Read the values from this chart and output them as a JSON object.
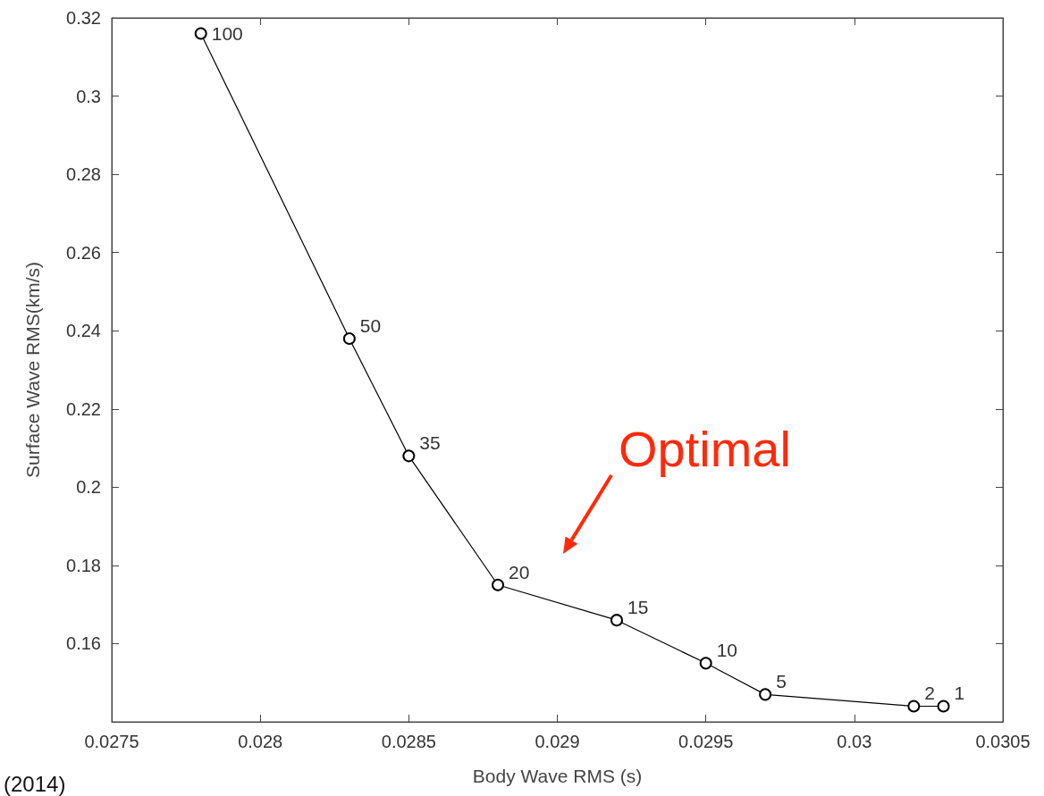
{
  "chart_data": {
    "type": "line",
    "xlabel": "Body Wave RMS (s)",
    "ylabel": "Surface Wave RMS(km/s)",
    "x": [
      0.0278,
      0.0283,
      0.0285,
      0.0288,
      0.0292,
      0.0295,
      0.0297,
      0.0302,
      0.0303
    ],
    "series": [
      {
        "color": "#000000",
        "values": [
          0.316,
          0.238,
          0.208,
          0.175,
          0.166,
          0.155,
          0.147,
          0.144,
          0.144
        ]
      }
    ],
    "xlim": [
      0.0275,
      0.0305
    ],
    "xticks": [
      0.0275,
      0.028,
      0.0285,
      0.029,
      0.0295,
      0.03,
      0.0305
    ],
    "ylim": [
      0.14,
      0.32
    ],
    "yticks": [
      0.16,
      0.18,
      0.2,
      0.22,
      0.24,
      0.26,
      0.28,
      0.3,
      0.32
    ],
    "marker": "circle",
    "line_style": "solid",
    "grid": false,
    "annotations": [
      "Optimal",
      {
        "text": "100",
        "x": 0.0278,
        "y": 0.316
      },
      {
        "text": "50",
        "x": 0.0283,
        "y": 0.238
      },
      {
        "text": "35",
        "x": 0.0285,
        "y": 0.208
      },
      {
        "text": "20",
        "x": 0.0288,
        "y": 0.175
      },
      {
        "text": "15",
        "x": 0.0292,
        "y": 0.166
      },
      {
        "text": "10",
        "x": 0.0295,
        "y": 0.155
      },
      {
        "text": "5",
        "x": 0.0297,
        "y": 0.147
      },
      {
        "text": "2",
        "x": 0.0302,
        "y": 0.144
      },
      {
        "text": "1",
        "x": 0.0303,
        "y": 0.144
      },
      "(2014)"
    ]
  }
}
